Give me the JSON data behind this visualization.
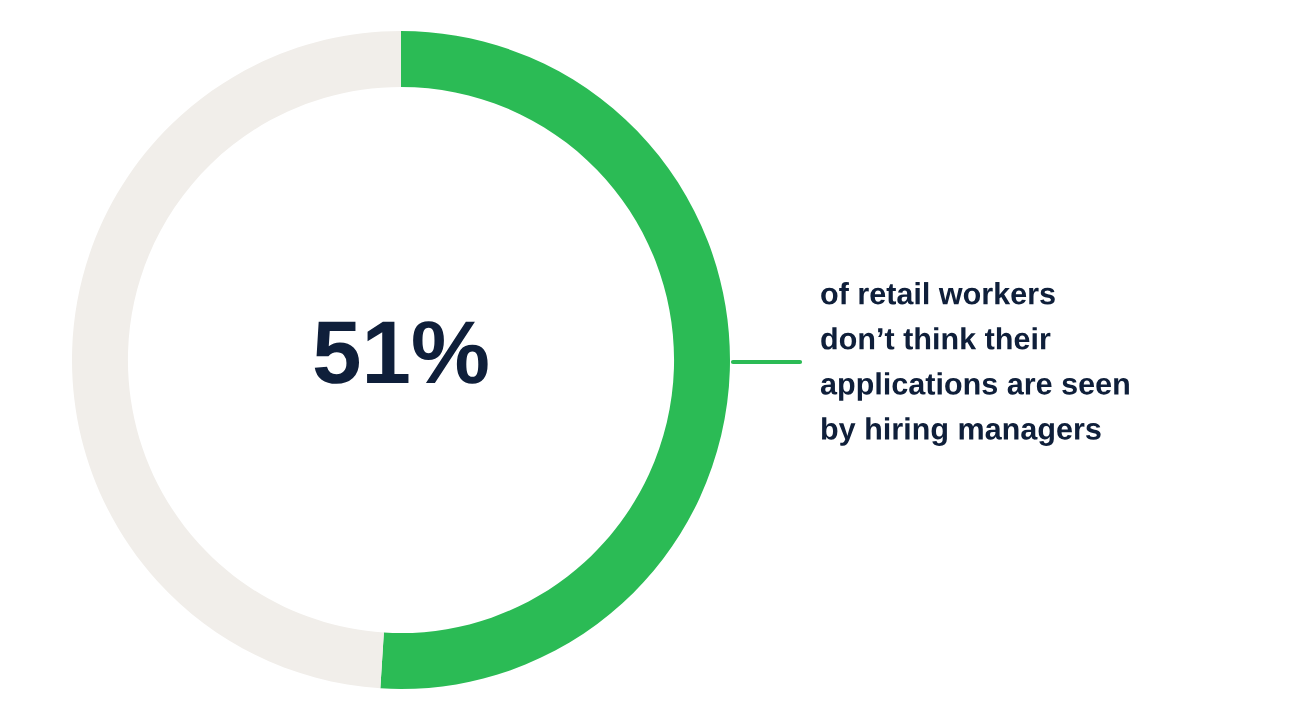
{
  "chart_data": {
    "type": "donut",
    "categories": [
      null,
      null
    ],
    "values": [
      51,
      49
    ],
    "colors": [
      "#2bbb55",
      "#f1eeea"
    ],
    "value_labels": [
      "51%",
      null
    ],
    "annotations": [
      "of retail workers\ndon’t think their\napplications are seen\nby hiring managers"
    ],
    "legend": false
  }
}
